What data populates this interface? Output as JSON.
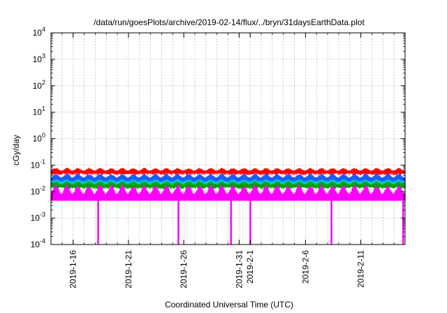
{
  "chart_data": {
    "type": "area",
    "title": "/data/run/goesPlots/archive/2019-02-14/flux/../bryn/31daysEarthData.plot",
    "xlabel": "Coordinated Universal Time (UTC)",
    "ylabel": "cGy/day",
    "y_scale": "log",
    "ylim": [
      0.0001,
      10000
    ],
    "xlim": [
      "2019-01-14",
      "2019-02-15"
    ],
    "grid": true,
    "y_ticks": [
      {
        "value": 0.0001,
        "mant": "10",
        "exp": "-4"
      },
      {
        "value": 0.001,
        "mant": "10",
        "exp": "-3"
      },
      {
        "value": 0.01,
        "mant": "10",
        "exp": "-2"
      },
      {
        "value": 0.1,
        "mant": "10",
        "exp": "-1"
      },
      {
        "value": 1,
        "mant": "10",
        "exp": "0"
      },
      {
        "value": 10,
        "mant": "10",
        "exp": "1"
      },
      {
        "value": 100,
        "mant": "10",
        "exp": "2"
      },
      {
        "value": 1000,
        "mant": "10",
        "exp": "3"
      },
      {
        "value": 10000,
        "mant": "10",
        "exp": "4"
      }
    ],
    "x_ticks": [
      {
        "date": "2019-01-16",
        "label": "2019-1-16"
      },
      {
        "date": "2019-01-21",
        "label": "2019-1-21"
      },
      {
        "date": "2019-01-26",
        "label": "2019-1-26"
      },
      {
        "date": "2019-01-31",
        "label": "2019-1-31"
      },
      {
        "date": "2019-02-01",
        "label": "2019-2-1"
      },
      {
        "date": "2019-02-06",
        "label": "2019-2-6"
      },
      {
        "date": "2019-02-11",
        "label": "2019-2-11"
      }
    ],
    "series": [
      {
        "color": "#ff0000",
        "typical_range": [
          0.05,
          0.08
        ]
      },
      {
        "color": "#1a5cff",
        "typical_range": [
          0.025,
          0.05
        ]
      },
      {
        "color": "#00cccc",
        "typical_range": [
          0.02,
          0.03
        ]
      },
      {
        "color": "#00a000",
        "typical_range": [
          0.015,
          0.025
        ]
      },
      {
        "color": "#ff00ff",
        "typical_range": [
          0.004,
          0.02
        ]
      }
    ],
    "dropouts": [
      {
        "date": "2019-01-18T06:00",
        "min_value": 0.0001
      },
      {
        "date": "2019-01-25T12:00",
        "min_value": 0.0001
      },
      {
        "date": "2019-01-30T06:00",
        "min_value": 0.0001
      },
      {
        "date": "2019-02-01T00:00",
        "min_value": 0.0001
      },
      {
        "date": "2019-02-08T08:00",
        "min_value": 0.0001
      },
      {
        "date": "2019-02-15T00:00",
        "min_value": 0.0001
      }
    ]
  }
}
